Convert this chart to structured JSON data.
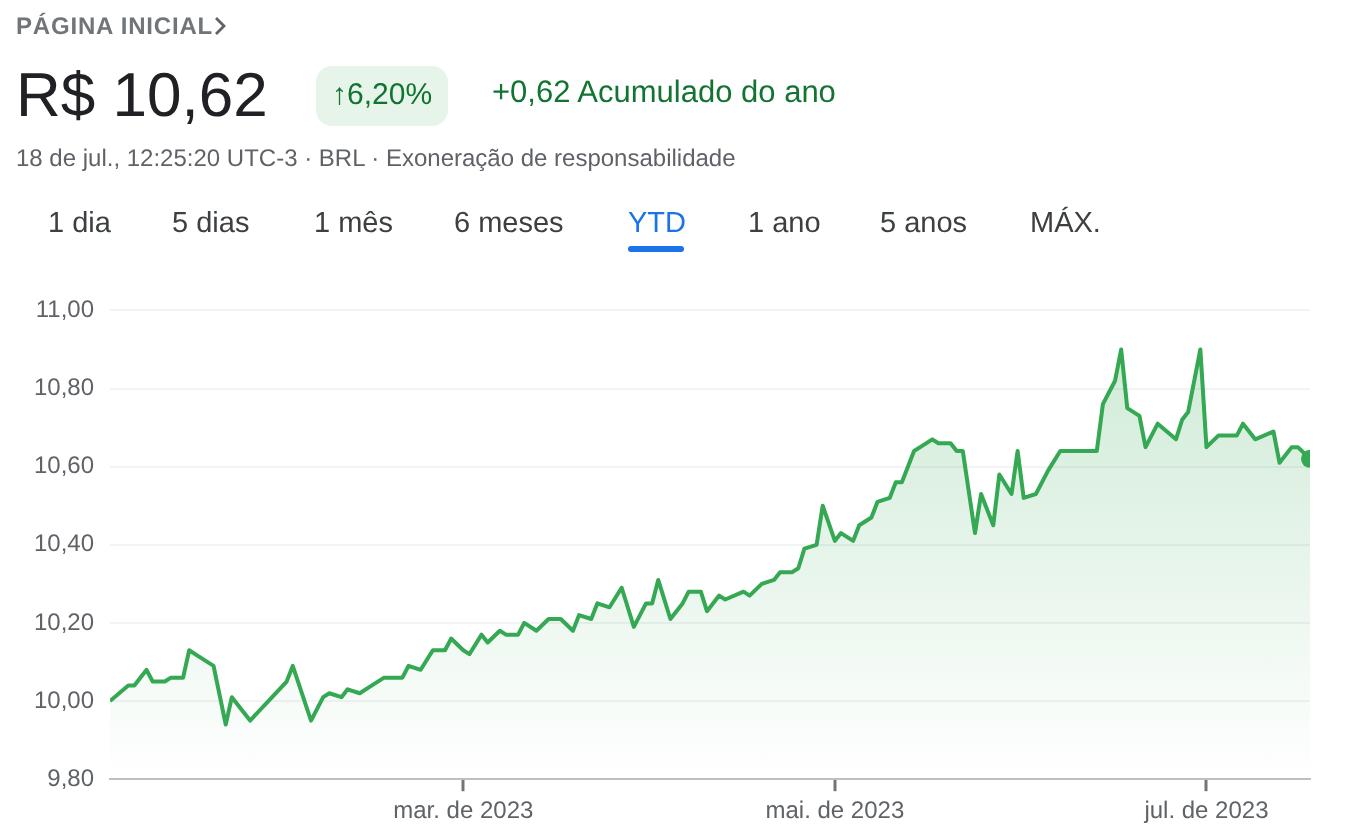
{
  "chart_data": {
    "type": "area",
    "title": "R$ 10,62",
    "annotations": [
      "PÁGINA INICIAL",
      "↑6,20%",
      "+0,62 Acumulado do ano",
      "18 de jul., 12:25:20 UTC-3 · BRL · Exoneração de responsabilidade",
      "1 dia",
      "5 dias",
      "1 mês",
      "6 meses",
      "YTD",
      "1 ano",
      "5 anos",
      "MÁX."
    ],
    "x": [
      "2023-01-02",
      "2023-01-05",
      "2023-01-06",
      "2023-01-08",
      "2023-01-09",
      "2023-01-11",
      "2023-01-12",
      "2023-01-14",
      "2023-01-15",
      "2023-01-17",
      "2023-01-19",
      "2023-01-21",
      "2023-01-22",
      "2023-01-25",
      "2023-01-28",
      "2023-01-31",
      "2023-02-01",
      "2023-02-04",
      "2023-02-06",
      "2023-02-07",
      "2023-02-09",
      "2023-02-10",
      "2023-02-12",
      "2023-02-14",
      "2023-02-16",
      "2023-02-19",
      "2023-02-20",
      "2023-02-22",
      "2023-02-24",
      "2023-02-26",
      "2023-02-27",
      "2023-03-01",
      "2023-03-02",
      "2023-03-04",
      "2023-03-05",
      "2023-03-07",
      "2023-03-08",
      "2023-03-10",
      "2023-03-11",
      "2023-03-13",
      "2023-03-15",
      "2023-03-17",
      "2023-03-19",
      "2023-03-20",
      "2023-03-22",
      "2023-03-23",
      "2023-03-25",
      "2023-03-27",
      "2023-03-29",
      "2023-03-31",
      "2023-04-01",
      "2023-04-02",
      "2023-04-04",
      "2023-04-06",
      "2023-04-07",
      "2023-04-09",
      "2023-04-10",
      "2023-04-12",
      "2023-04-13",
      "2023-04-16",
      "2023-04-17",
      "2023-04-19",
      "2023-04-21",
      "2023-04-22",
      "2023-04-24",
      "2023-04-25",
      "2023-04-26",
      "2023-04-28",
      "2023-04-29",
      "2023-05-01",
      "2023-05-02",
      "2023-05-04",
      "2023-05-05",
      "2023-05-07",
      "2023-05-08",
      "2023-05-10",
      "2023-05-11",
      "2023-05-12",
      "2023-05-14",
      "2023-05-15",
      "2023-05-17",
      "2023-05-18",
      "2023-05-20",
      "2023-05-21",
      "2023-05-22",
      "2023-05-24",
      "2023-05-25",
      "2023-05-27",
      "2023-05-28",
      "2023-05-30",
      "2023-05-31",
      "2023-06-01",
      "2023-06-03",
      "2023-06-05",
      "2023-06-07",
      "2023-06-10",
      "2023-06-11",
      "2023-06-13",
      "2023-06-14",
      "2023-06-16",
      "2023-06-17",
      "2023-06-18",
      "2023-06-20",
      "2023-06-21",
      "2023-06-23",
      "2023-06-26",
      "2023-06-27",
      "2023-06-28",
      "2023-06-30",
      "2023-07-01",
      "2023-07-03",
      "2023-07-06",
      "2023-07-07",
      "2023-07-09",
      "2023-07-12",
      "2023-07-13",
      "2023-07-15",
      "2023-07-16",
      "2023-07-18"
    ],
    "values": [
      10.0,
      10.04,
      10.04,
      10.08,
      10.05,
      10.05,
      10.06,
      10.06,
      10.13,
      10.11,
      10.09,
      9.94,
      10.01,
      9.95,
      10.0,
      10.05,
      10.09,
      9.95,
      10.01,
      10.02,
      10.01,
      10.03,
      10.02,
      10.04,
      10.06,
      10.06,
      10.09,
      10.08,
      10.13,
      10.13,
      10.16,
      10.13,
      10.12,
      10.17,
      10.15,
      10.18,
      10.17,
      10.17,
      10.2,
      10.18,
      10.21,
      10.21,
      10.18,
      10.22,
      10.21,
      10.25,
      10.24,
      10.29,
      10.19,
      10.25,
      10.25,
      10.31,
      10.21,
      10.25,
      10.28,
      10.28,
      10.23,
      10.27,
      10.26,
      10.28,
      10.27,
      10.3,
      10.31,
      10.33,
      10.33,
      10.34,
      10.39,
      10.4,
      10.5,
      10.41,
      10.43,
      10.41,
      10.45,
      10.47,
      10.51,
      10.52,
      10.56,
      10.56,
      10.64,
      10.65,
      10.67,
      10.66,
      10.66,
      10.64,
      10.64,
      10.43,
      10.53,
      10.45,
      10.58,
      10.53,
      10.64,
      10.52,
      10.53,
      10.59,
      10.64,
      10.64,
      10.64,
      10.64,
      10.76,
      10.82,
      10.9,
      10.75,
      10.73,
      10.65,
      10.71,
      10.67,
      10.72,
      10.74,
      10.9,
      10.65,
      10.68,
      10.68,
      10.71,
      10.67,
      10.69,
      10.61,
      10.65,
      10.65,
      10.62
    ],
    "color": "#34a853",
    "xlim": [
      "2023-01-02",
      "2023-07-18"
    ],
    "xticks": [
      {
        "value": "2023-03-01",
        "label": "mar. de 2023"
      },
      {
        "value": "2023-05-01",
        "label": "mai. de 2023"
      },
      {
        "value": "2023-07-01",
        "label": "jul. de 2023"
      }
    ],
    "ylim": [
      9.8,
      11.0
    ],
    "yticks": [
      {
        "value": 9.8,
        "label": "9,80"
      },
      {
        "value": 10.0,
        "label": "10,00"
      },
      {
        "value": 10.2,
        "label": "10,20"
      },
      {
        "value": 10.4,
        "label": "10,40"
      },
      {
        "value": 10.6,
        "label": "10,60"
      },
      {
        "value": 10.8,
        "label": "10,80"
      },
      {
        "value": 11.0,
        "label": "11,00"
      }
    ],
    "grid": "y"
  }
}
